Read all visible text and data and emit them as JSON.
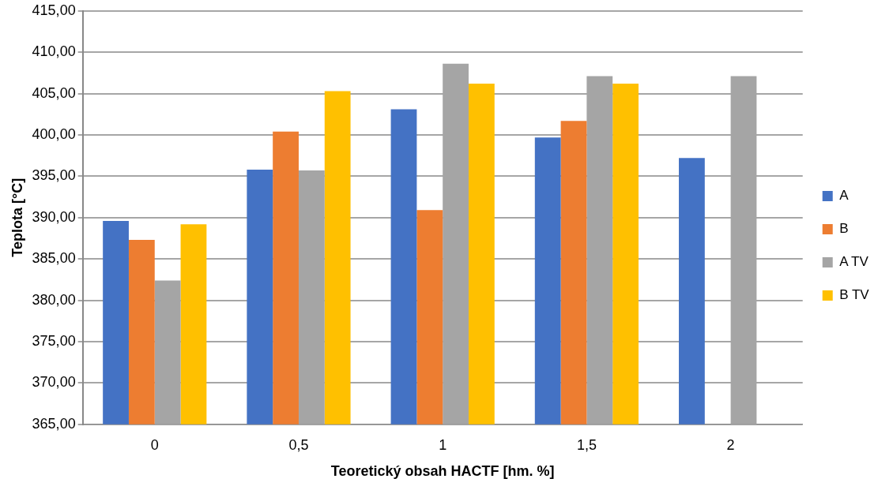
{
  "chart_data": {
    "type": "bar",
    "xlabel": "Teoretický obsah HACTF [hm. %]",
    "ylabel": "Teplota [°C]",
    "categories": [
      "0",
      "0,5",
      "1",
      "1,5",
      "2"
    ],
    "series": [
      {
        "name": "A",
        "color": "#4472c4",
        "values": [
          389.6,
          395.8,
          403.1,
          399.7,
          397.2
        ]
      },
      {
        "name": "B",
        "color": "#ed7d31",
        "values": [
          387.3,
          400.4,
          390.9,
          401.7,
          null
        ]
      },
      {
        "name": "A TV",
        "color": "#a5a5a5",
        "values": [
          382.4,
          395.7,
          408.6,
          407.1,
          407.1
        ]
      },
      {
        "name": "B TV",
        "color": "#ffc000",
        "values": [
          389.2,
          405.3,
          406.2,
          406.2,
          null
        ]
      }
    ],
    "ylim": [
      365,
      415
    ],
    "yticks": [
      {
        "value": 365,
        "label": "365,00"
      },
      {
        "value": 370,
        "label": "370,00"
      },
      {
        "value": 375,
        "label": "375,00"
      },
      {
        "value": 380,
        "label": "380,00"
      },
      {
        "value": 385,
        "label": "385,00"
      },
      {
        "value": 390,
        "label": "390,00"
      },
      {
        "value": 395,
        "label": "395,00"
      },
      {
        "value": 400,
        "label": "400,00"
      },
      {
        "value": 405,
        "label": "405,00"
      },
      {
        "value": 410,
        "label": "410,00"
      },
      {
        "value": 415,
        "label": "415,00"
      }
    ],
    "grid": "y",
    "legend": "right"
  }
}
